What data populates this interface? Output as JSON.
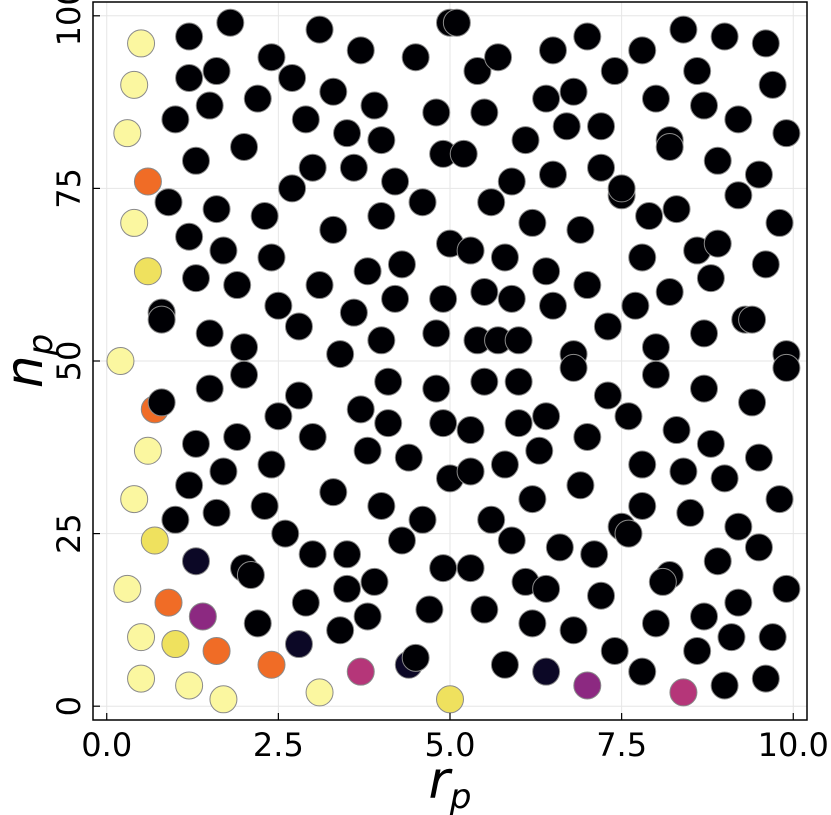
{
  "chart_data": {
    "type": "scatter",
    "title": "",
    "xlabel": "r",
    "xlabel_sub": "p",
    "ylabel": "n",
    "ylabel_sub": "p",
    "xlim": [
      -0.2,
      10.2
    ],
    "ylim": [
      -2,
      102
    ],
    "x_ticks": [
      0,
      2.5,
      5,
      7.5,
      10
    ],
    "x_tick_labels": [
      "0.0",
      "2.5",
      "5.0",
      "7.5",
      "10.0"
    ],
    "y_ticks": [
      0,
      25,
      50,
      75,
      100
    ],
    "y_tick_labels": [
      "0",
      "25",
      "50",
      "75",
      "100"
    ],
    "grid": true,
    "legend": "none",
    "colormap": "inferno",
    "color_key": {
      "K": "#000004",
      "D": "#0c0826",
      "P": "#3b0f6f",
      "M": "#8c2981",
      "R": "#b53679",
      "O": "#f06c26",
      "Y": "#efe15e",
      "L": "#fbf7a0"
    },
    "points": [
      [
        0.5,
        96,
        "L"
      ],
      [
        0.4,
        90,
        "L"
      ],
      [
        0.3,
        83,
        "L"
      ],
      [
        0.6,
        76,
        "O"
      ],
      [
        0.4,
        70,
        "L"
      ],
      [
        0.6,
        63,
        "Y"
      ],
      [
        0.8,
        57,
        "K"
      ],
      [
        0.2,
        50,
        "L"
      ],
      [
        0.7,
        43,
        "O"
      ],
      [
        0.6,
        37,
        "L"
      ],
      [
        0.4,
        30,
        "L"
      ],
      [
        0.7,
        24,
        "Y"
      ],
      [
        0.3,
        17,
        "L"
      ],
      [
        0.5,
        10,
        "L"
      ],
      [
        0.5,
        4,
        "L"
      ],
      [
        0.8,
        56,
        "K"
      ],
      [
        0.8,
        44,
        "K"
      ],
      [
        1.0,
        27,
        "K"
      ],
      [
        0.9,
        15,
        "O"
      ],
      [
        1.0,
        9,
        "Y"
      ],
      [
        1.2,
        3,
        "L"
      ],
      [
        1.7,
        1,
        "L"
      ],
      [
        1.4,
        13,
        "M"
      ],
      [
        1.6,
        8,
        "O"
      ],
      [
        1.3,
        21,
        "D"
      ],
      [
        2.4,
        6,
        "O"
      ],
      [
        2.8,
        9,
        "D"
      ],
      [
        3.1,
        2,
        "L"
      ],
      [
        3.7,
        5,
        "R"
      ],
      [
        4.4,
        6,
        "D"
      ],
      [
        5.0,
        1,
        "Y"
      ],
      [
        6.4,
        5,
        "D"
      ],
      [
        7.0,
        3,
        "M"
      ],
      [
        8.4,
        2,
        "R"
      ],
      [
        9.0,
        3,
        "K"
      ],
      [
        1.2,
        97,
        "K"
      ],
      [
        1.2,
        91,
        "K"
      ],
      [
        1.0,
        85,
        "K"
      ],
      [
        1.3,
        79,
        "K"
      ],
      [
        0.9,
        73,
        "K"
      ],
      [
        1.2,
        68,
        "K"
      ],
      [
        1.3,
        62,
        "K"
      ],
      [
        1.5,
        54,
        "K"
      ],
      [
        1.5,
        46,
        "K"
      ],
      [
        1.3,
        38,
        "K"
      ],
      [
        1.2,
        32,
        "K"
      ],
      [
        1.6,
        28,
        "K"
      ],
      [
        1.6,
        92,
        "K"
      ],
      [
        1.5,
        87,
        "K"
      ],
      [
        1.8,
        99,
        "K"
      ],
      [
        1.6,
        72,
        "K"
      ],
      [
        1.7,
        66,
        "K"
      ],
      [
        1.9,
        61,
        "K"
      ],
      [
        2.0,
        52,
        "K"
      ],
      [
        2.0,
        48,
        "K"
      ],
      [
        1.9,
        39,
        "K"
      ],
      [
        1.7,
        34,
        "K"
      ],
      [
        2.0,
        20,
        "K"
      ],
      [
        2.2,
        12,
        "K"
      ],
      [
        2.4,
        94,
        "K"
      ],
      [
        2.2,
        88,
        "K"
      ],
      [
        2.0,
        81,
        "K"
      ],
      [
        2.3,
        71,
        "K"
      ],
      [
        2.4,
        65,
        "K"
      ],
      [
        2.5,
        58,
        "K"
      ],
      [
        2.5,
        42,
        "K"
      ],
      [
        2.4,
        35,
        "K"
      ],
      [
        2.3,
        29,
        "K"
      ],
      [
        2.6,
        25,
        "K"
      ],
      [
        2.1,
        19,
        "K"
      ],
      [
        2.7,
        91,
        "K"
      ],
      [
        2.9,
        85,
        "K"
      ],
      [
        2.7,
        75,
        "K"
      ],
      [
        2.8,
        55,
        "K"
      ],
      [
        2.8,
        45,
        "K"
      ],
      [
        3.0,
        39,
        "K"
      ],
      [
        3.0,
        22,
        "K"
      ],
      [
        2.9,
        15,
        "K"
      ],
      [
        3.1,
        98,
        "K"
      ],
      [
        3.3,
        89,
        "K"
      ],
      [
        3.0,
        78,
        "K"
      ],
      [
        3.3,
        69,
        "K"
      ],
      [
        3.1,
        61,
        "K"
      ],
      [
        3.4,
        51,
        "K"
      ],
      [
        3.3,
        31,
        "K"
      ],
      [
        3.4,
        11,
        "K"
      ],
      [
        3.7,
        95,
        "K"
      ],
      [
        3.5,
        83,
        "K"
      ],
      [
        3.6,
        78,
        "K"
      ],
      [
        3.8,
        63,
        "K"
      ],
      [
        3.6,
        57,
        "K"
      ],
      [
        3.7,
        43,
        "K"
      ],
      [
        3.8,
        37,
        "K"
      ],
      [
        3.5,
        22,
        "K"
      ],
      [
        3.5,
        17,
        "K"
      ],
      [
        3.8,
        13,
        "K"
      ],
      [
        3.9,
        87,
        "K"
      ],
      [
        4.0,
        82,
        "K"
      ],
      [
        4.0,
        71,
        "K"
      ],
      [
        4.0,
        53,
        "K"
      ],
      [
        4.1,
        47,
        "K"
      ],
      [
        4.1,
        41,
        "K"
      ],
      [
        4.0,
        29,
        "K"
      ],
      [
        3.9,
        18,
        "K"
      ],
      [
        4.5,
        94,
        "K"
      ],
      [
        4.2,
        76,
        "K"
      ],
      [
        4.3,
        64,
        "K"
      ],
      [
        4.2,
        59,
        "K"
      ],
      [
        4.4,
        36,
        "K"
      ],
      [
        4.3,
        24,
        "K"
      ],
      [
        4.5,
        7,
        "K"
      ],
      [
        4.8,
        86,
        "K"
      ],
      [
        4.6,
        73,
        "K"
      ],
      [
        4.8,
        54,
        "K"
      ],
      [
        4.8,
        46,
        "K"
      ],
      [
        4.6,
        27,
        "K"
      ],
      [
        4.7,
        14,
        "K"
      ],
      [
        5.0,
        99,
        "K"
      ],
      [
        4.9,
        80,
        "K"
      ],
      [
        5.0,
        67,
        "K"
      ],
      [
        4.9,
        59,
        "K"
      ],
      [
        4.9,
        41,
        "K"
      ],
      [
        5.0,
        33,
        "K"
      ],
      [
        4.9,
        20,
        "K"
      ],
      [
        5.1,
        99,
        "K"
      ],
      [
        5.4,
        92,
        "K"
      ],
      [
        5.5,
        86,
        "K"
      ],
      [
        5.2,
        80,
        "K"
      ],
      [
        5.3,
        66,
        "K"
      ],
      [
        5.5,
        60,
        "K"
      ],
      [
        5.4,
        53,
        "K"
      ],
      [
        5.5,
        47,
        "K"
      ],
      [
        5.3,
        40,
        "K"
      ],
      [
        5.3,
        34,
        "K"
      ],
      [
        5.6,
        27,
        "K"
      ],
      [
        5.3,
        20,
        "K"
      ],
      [
        5.5,
        14,
        "K"
      ],
      [
        5.8,
        6,
        "K"
      ],
      [
        5.7,
        94,
        "K"
      ],
      [
        5.6,
        73,
        "K"
      ],
      [
        5.8,
        65,
        "K"
      ],
      [
        5.9,
        59,
        "K"
      ],
      [
        5.7,
        53,
        "K"
      ],
      [
        6.0,
        47,
        "K"
      ],
      [
        6.0,
        41,
        "K"
      ],
      [
        5.8,
        35,
        "K"
      ],
      [
        5.9,
        24,
        "K"
      ],
      [
        6.1,
        82,
        "K"
      ],
      [
        5.9,
        76,
        "K"
      ],
      [
        6.2,
        70,
        "K"
      ],
      [
        6.0,
        53,
        "K"
      ],
      [
        6.4,
        42,
        "K"
      ],
      [
        6.3,
        37,
        "K"
      ],
      [
        6.2,
        30,
        "K"
      ],
      [
        6.1,
        18,
        "K"
      ],
      [
        6.2,
        12,
        "K"
      ],
      [
        6.5,
        95,
        "K"
      ],
      [
        6.4,
        88,
        "K"
      ],
      [
        6.5,
        77,
        "K"
      ],
      [
        6.4,
        63,
        "K"
      ],
      [
        6.5,
        58,
        "K"
      ],
      [
        6.6,
        23,
        "K"
      ],
      [
        6.4,
        17,
        "K"
      ],
      [
        6.8,
        89,
        "K"
      ],
      [
        6.7,
        84,
        "K"
      ],
      [
        6.9,
        69,
        "K"
      ],
      [
        6.8,
        51,
        "K"
      ],
      [
        6.8,
        49,
        "K"
      ],
      [
        6.9,
        32,
        "K"
      ],
      [
        6.8,
        11,
        "K"
      ],
      [
        7.0,
        97,
        "K"
      ],
      [
        7.2,
        78,
        "K"
      ],
      [
        7.0,
        61,
        "K"
      ],
      [
        7.0,
        39,
        "K"
      ],
      [
        7.1,
        22,
        "K"
      ],
      [
        7.2,
        16,
        "K"
      ],
      [
        7.4,
        92,
        "K"
      ],
      [
        7.2,
        84,
        "K"
      ],
      [
        7.5,
        74,
        "K"
      ],
      [
        7.5,
        75,
        "K"
      ],
      [
        7.3,
        55,
        "K"
      ],
      [
        7.3,
        45,
        "K"
      ],
      [
        7.5,
        26,
        "K"
      ],
      [
        7.6,
        25,
        "K"
      ],
      [
        7.4,
        8,
        "K"
      ],
      [
        7.8,
        95,
        "K"
      ],
      [
        7.7,
        58,
        "K"
      ],
      [
        7.6,
        42,
        "K"
      ],
      [
        7.8,
        35,
        "K"
      ],
      [
        7.8,
        29,
        "K"
      ],
      [
        7.8,
        5,
        "K"
      ],
      [
        8.0,
        88,
        "K"
      ],
      [
        7.9,
        71,
        "K"
      ],
      [
        7.8,
        65,
        "K"
      ],
      [
        8.0,
        52,
        "K"
      ],
      [
        8.0,
        48,
        "K"
      ],
      [
        8.0,
        12,
        "K"
      ],
      [
        8.4,
        98,
        "K"
      ],
      [
        8.2,
        82,
        "K"
      ],
      [
        8.2,
        81,
        "K"
      ],
      [
        8.3,
        72,
        "K"
      ],
      [
        8.2,
        60,
        "K"
      ],
      [
        8.3,
        40,
        "K"
      ],
      [
        8.4,
        34,
        "K"
      ],
      [
        8.2,
        19,
        "K"
      ],
      [
        8.1,
        18,
        "K"
      ],
      [
        8.6,
        92,
        "K"
      ],
      [
        8.7,
        87,
        "K"
      ],
      [
        8.6,
        66,
        "K"
      ],
      [
        8.7,
        54,
        "K"
      ],
      [
        8.7,
        46,
        "K"
      ],
      [
        8.5,
        28,
        "K"
      ],
      [
        8.7,
        13,
        "K"
      ],
      [
        8.6,
        8,
        "K"
      ],
      [
        9.0,
        97,
        "K"
      ],
      [
        8.9,
        79,
        "K"
      ],
      [
        8.9,
        67,
        "K"
      ],
      [
        8.8,
        62,
        "K"
      ],
      [
        8.8,
        38,
        "K"
      ],
      [
        9.0,
        33,
        "K"
      ],
      [
        8.9,
        21,
        "K"
      ],
      [
        9.1,
        10,
        "K"
      ],
      [
        9.2,
        85,
        "K"
      ],
      [
        9.2,
        74,
        "K"
      ],
      [
        9.3,
        56,
        "K"
      ],
      [
        9.4,
        56,
        "K"
      ],
      [
        9.4,
        44,
        "K"
      ],
      [
        9.2,
        26,
        "K"
      ],
      [
        9.2,
        15,
        "K"
      ],
      [
        9.6,
        96,
        "K"
      ],
      [
        9.7,
        90,
        "K"
      ],
      [
        9.5,
        77,
        "K"
      ],
      [
        9.6,
        64,
        "K"
      ],
      [
        9.5,
        36,
        "K"
      ],
      [
        9.5,
        23,
        "K"
      ],
      [
        9.7,
        10,
        "K"
      ],
      [
        9.6,
        4,
        "K"
      ],
      [
        9.9,
        83,
        "K"
      ],
      [
        9.8,
        70,
        "K"
      ],
      [
        9.9,
        51,
        "K"
      ],
      [
        9.9,
        49,
        "K"
      ],
      [
        9.8,
        30,
        "K"
      ],
      [
        9.9,
        17,
        "K"
      ]
    ]
  }
}
